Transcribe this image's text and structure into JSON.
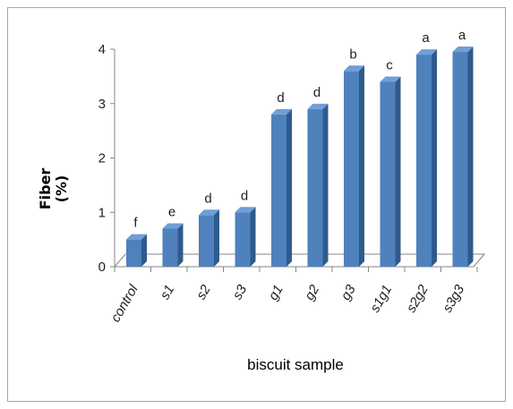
{
  "chart_data": {
    "type": "bar",
    "categories": [
      "control",
      "s1",
      "s2",
      "s3",
      "g1",
      "g2",
      "g3",
      "s1g1",
      "s2g2",
      "s3g3"
    ],
    "values": [
      0.5,
      0.7,
      0.95,
      1.0,
      2.8,
      2.9,
      3.6,
      3.4,
      3.9,
      3.95
    ],
    "significance_letters": [
      "f",
      "e",
      "d",
      "d",
      "d",
      "d",
      "b",
      "c",
      "a",
      "a"
    ],
    "ylabel": "Fiber\n(%)",
    "xlabel": "biscuit sample",
    "ylim": [
      0,
      4
    ],
    "yticks": [
      "0",
      "1",
      "2",
      "3",
      "4"
    ],
    "grid": false,
    "legend": "none",
    "bar_color": "#4f81bd",
    "bar_side_color": "#2f5a8c",
    "bar_top_color": "#6f9fd8"
  }
}
